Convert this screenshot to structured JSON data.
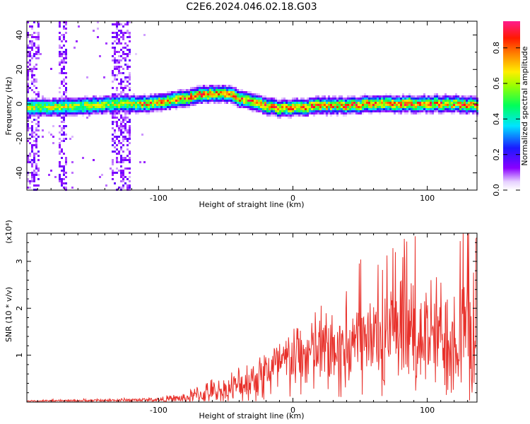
{
  "figure": {
    "title": "C2E6.2024.046.02.18.G03"
  },
  "chart_data": [
    {
      "type": "heatmap",
      "title": "C2E6.2024.046.02.18.G03",
      "xlabel": "Height of straight line (km)",
      "ylabel": "Frequency (Hz)",
      "xlim": [
        -198,
        137
      ],
      "ylim": [
        -50,
        48
      ],
      "x_ticks": [
        -100,
        0,
        100
      ],
      "x_tick_labels": [
        "-100",
        "0",
        "100"
      ],
      "y_ticks": [
        -40,
        -20,
        0,
        20,
        40
      ],
      "y_tick_labels": [
        "-40",
        "-20",
        "0",
        "20",
        "40"
      ],
      "colorbar": {
        "label": "Normalized spectral amplitude",
        "range": [
          0,
          0.95
        ],
        "ticks": [
          0.0,
          0.2,
          0.4,
          0.6,
          0.8
        ],
        "tick_labels": [
          "0.0",
          "0.2",
          "0.4",
          "0.6",
          "0.8"
        ],
        "colormap": "rainbow (white - purple - blue - cyan - green - yellow - orange - red - magenta)"
      },
      "ridge": {
        "x": [
          -190,
          -170,
          -150,
          -130,
          -110,
          -100,
          -90,
          -80,
          -70,
          -60,
          -50,
          -45,
          -40,
          -30,
          -20,
          -10,
          0,
          10,
          20,
          40,
          60,
          80,
          100,
          120,
          137
        ],
        "y": [
          -2,
          -2,
          -1,
          0,
          0,
          1,
          2,
          3,
          5,
          6,
          6,
          5,
          3,
          1,
          -1,
          -3,
          -2,
          -2,
          -1,
          -1,
          0,
          0,
          0,
          0,
          -1
        ]
      },
      "noise_bands_x": [
        [
          -198,
          -188
        ],
        [
          -175,
          -168
        ],
        [
          -135,
          -120
        ]
      ]
    },
    {
      "type": "line",
      "xlabel": "Height of straight line (km)",
      "ylabel": "SNR (10 * v/v)",
      "y_multiplier": "(x10⁴)",
      "xlim": [
        -198,
        137
      ],
      "ylim": [
        0,
        3.6
      ],
      "x_ticks": [
        -100,
        0,
        100
      ],
      "x_tick_labels": [
        "-100",
        "0",
        "100"
      ],
      "y_ticks": [
        1,
        2,
        3
      ],
      "y_tick_labels": [
        "1",
        "2",
        "3"
      ],
      "color": "#e8312b",
      "envelope": {
        "x": [
          -198,
          -150,
          -100,
          -80,
          -70,
          -60,
          -50,
          -40,
          -30,
          -20,
          -10,
          0,
          10,
          20,
          30,
          40,
          50,
          60,
          70,
          80,
          90,
          100,
          110,
          120,
          130,
          137
        ],
        "mean": [
          0.02,
          0.03,
          0.05,
          0.08,
          0.15,
          0.2,
          0.25,
          0.35,
          0.5,
          0.65,
          0.75,
          0.9,
          1.0,
          1.1,
          1.15,
          1.2,
          1.25,
          1.3,
          1.3,
          1.35,
          1.4,
          1.4,
          1.4,
          1.45,
          1.45,
          1.45
        ],
        "amp": [
          0.03,
          0.05,
          0.07,
          0.15,
          0.3,
          0.35,
          0.4,
          0.5,
          0.6,
          0.8,
          0.9,
          1.0,
          1.1,
          1.2,
          1.3,
          1.35,
          1.4,
          1.5,
          1.5,
          1.5,
          1.6,
          1.6,
          1.6,
          1.7,
          1.8,
          1.8
        ]
      }
    }
  ]
}
